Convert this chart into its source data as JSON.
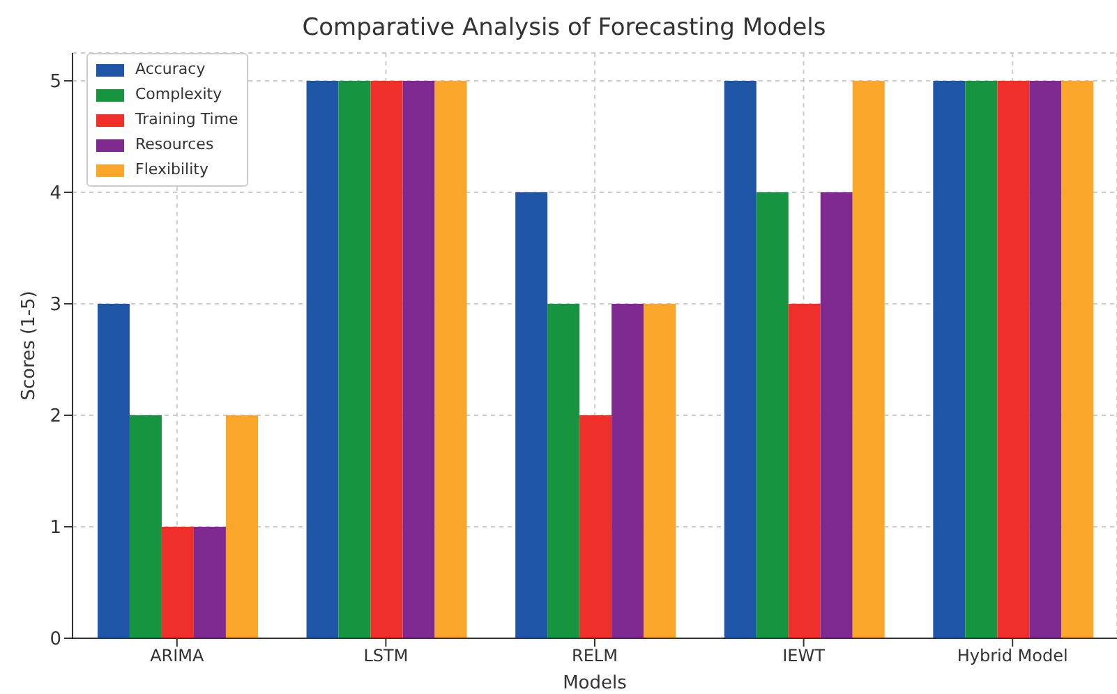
{
  "chart_data": {
    "type": "bar",
    "title": "Comparative Analysis of Forecasting Models",
    "xlabel": "Models",
    "ylabel": "Scores (1-5)",
    "categories": [
      "ARIMA",
      "LSTM",
      "RELM",
      "IEWT",
      "Hybrid Model"
    ],
    "series": [
      {
        "name": "Accuracy",
        "color": "#1f55a6",
        "values": [
          3,
          5,
          4,
          5,
          5
        ]
      },
      {
        "name": "Complexity",
        "color": "#16943f",
        "values": [
          2,
          5,
          3,
          4,
          5
        ]
      },
      {
        "name": "Training Time",
        "color": "#ee2f2a",
        "values": [
          1,
          5,
          2,
          3,
          5
        ]
      },
      {
        "name": "Resources",
        "color": "#7e2a91",
        "values": [
          1,
          5,
          3,
          4,
          5
        ]
      },
      {
        "name": "Flexibility",
        "color": "#faa62a",
        "values": [
          2,
          5,
          3,
          5,
          5
        ]
      }
    ],
    "ylim": [
      0,
      5.25
    ],
    "yticks": [
      0,
      1,
      2,
      3,
      4,
      5
    ],
    "grid": true,
    "legend": "top left"
  }
}
